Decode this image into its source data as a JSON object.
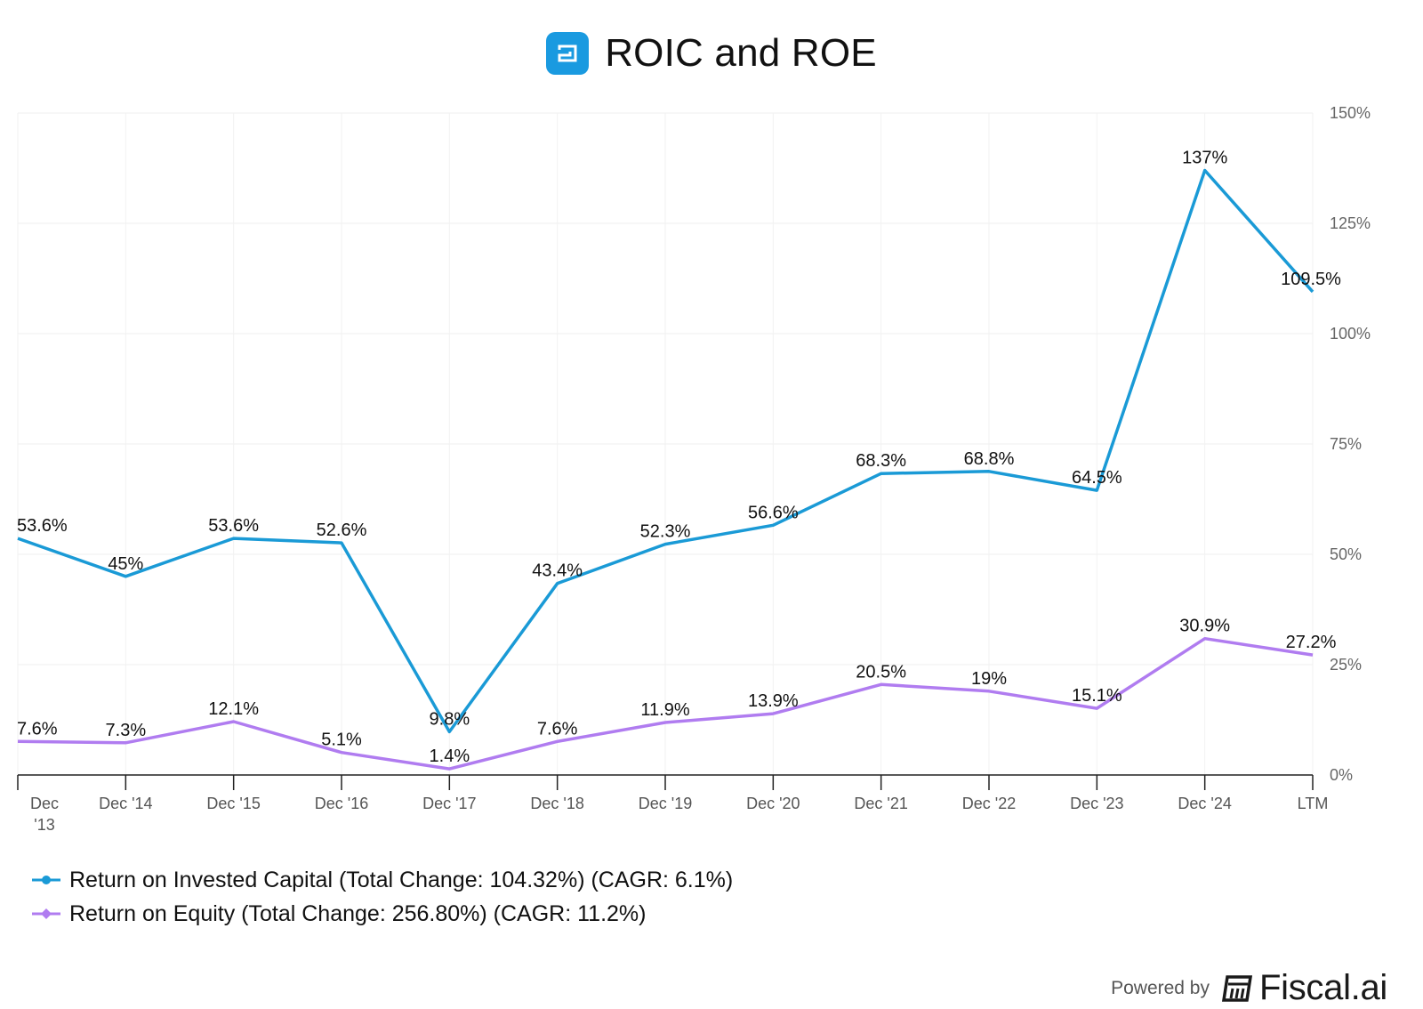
{
  "chart_data": {
    "type": "line",
    "title": "ROIC and ROE",
    "categories": [
      "Dec\n'13",
      "Dec '14",
      "Dec '15",
      "Dec '16",
      "Dec '17",
      "Dec '18",
      "Dec '19",
      "Dec '20",
      "Dec '21",
      "Dec '22",
      "Dec '23",
      "Dec '24",
      "LTM"
    ],
    "series": [
      {
        "name": "Return on Invested Capital (Total Change: 104.32%) (CAGR: 6.1%)",
        "color": "#1a9ad6",
        "values": [
          53.6,
          45,
          53.6,
          52.6,
          9.8,
          43.4,
          52.3,
          56.6,
          68.3,
          68.8,
          64.5,
          137,
          109.5
        ],
        "labels": [
          "53.6%",
          "45%",
          "53.6%",
          "52.6%",
          "9.8%",
          "43.4%",
          "52.3%",
          "56.6%",
          "68.3%",
          "68.8%",
          "64.5%",
          "137%",
          "109.5%"
        ]
      },
      {
        "name": "Return on Equity (Total Change: 256.80%) (CAGR: 11.2%)",
        "color": "#b07cf0",
        "values": [
          7.6,
          7.3,
          12.1,
          5.1,
          1.4,
          7.6,
          11.9,
          13.9,
          20.5,
          19,
          15.1,
          30.9,
          27.2
        ],
        "labels": [
          "7.6%",
          "7.3%",
          "12.1%",
          "5.1%",
          "1.4%",
          "7.6%",
          "11.9%",
          "13.9%",
          "20.5%",
          "19%",
          "15.1%",
          "30.9%",
          "27.2%"
        ]
      }
    ],
    "ylim": [
      0,
      150
    ],
    "yticks": [
      0,
      25,
      50,
      75,
      100,
      125,
      150
    ],
    "ytick_labels": [
      "0%",
      "25%",
      "50%",
      "75%",
      "100%",
      "125%",
      "150%"
    ],
    "yaxis_side": "right",
    "grid": true,
    "legend_position": "bottom-left"
  },
  "header": {
    "title": "ROIC and ROE",
    "logo_icon": "company-logo-icon"
  },
  "footer": {
    "powered_by": "Powered by",
    "brand": "Fiscal.ai"
  }
}
